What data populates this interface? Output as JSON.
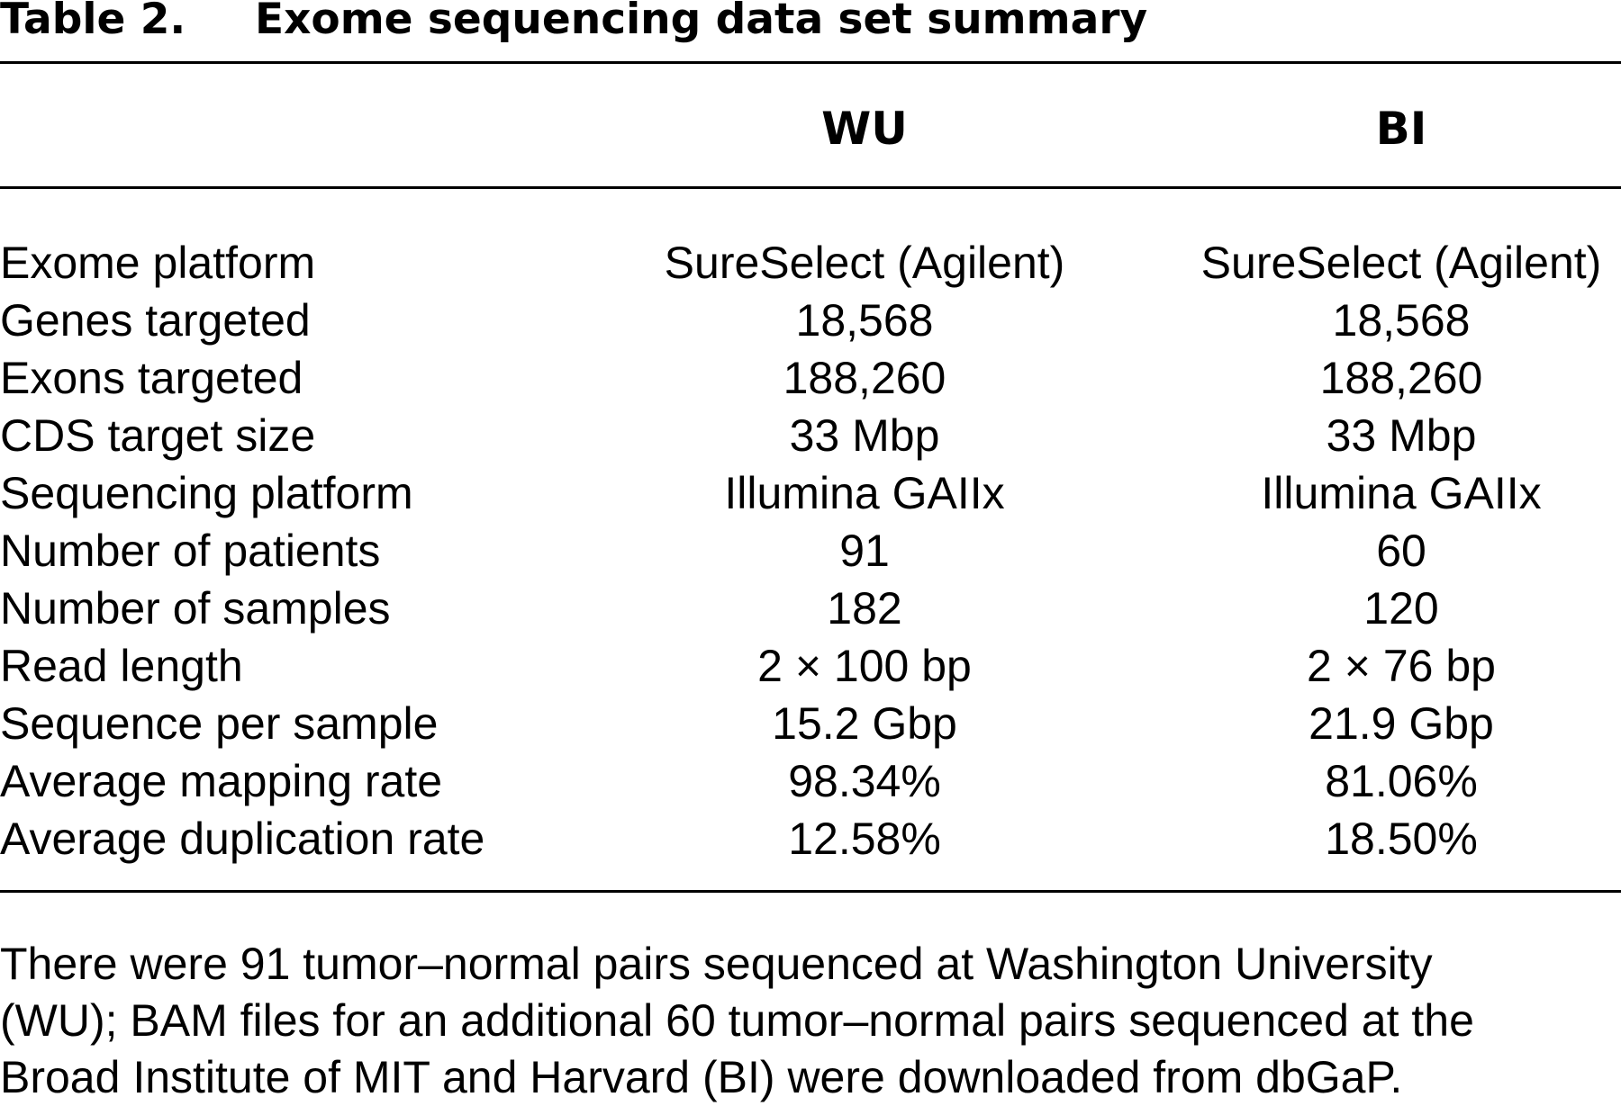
{
  "table": {
    "label": "Table 2.",
    "title": "Exome sequencing data set summary",
    "columns": [
      "WU",
      "BI"
    ],
    "rows": [
      {
        "label": "Exome platform",
        "wu": "SureSelect (Agilent)",
        "bi": "SureSelect (Agilent)"
      },
      {
        "label": "Genes targeted",
        "wu": "18,568",
        "bi": "18,568"
      },
      {
        "label": "Exons targeted",
        "wu": "188,260",
        "bi": "188,260"
      },
      {
        "label": "CDS target size",
        "wu": "33 Mbp",
        "bi": "33 Mbp"
      },
      {
        "label": "Sequencing platform",
        "wu": "Illumina GAIIx",
        "bi": "Illumina GAIIx"
      },
      {
        "label": "Number of patients",
        "wu": "91",
        "bi": "60"
      },
      {
        "label": "Number of samples",
        "wu": "182",
        "bi": "120"
      },
      {
        "label": "Read length",
        "wu": "2 × 100 bp",
        "bi": "2 × 76 bp"
      },
      {
        "label": "Sequence per sample",
        "wu": "15.2 Gbp",
        "bi": "21.9 Gbp"
      },
      {
        "label": "Average mapping rate",
        "wu": "98.34%",
        "bi": "81.06%"
      },
      {
        "label": "Average duplication rate",
        "wu": "12.58%",
        "bi": "18.50%"
      }
    ],
    "footnote_lines": [
      "There were 91 tumor–normal pairs sequenced at Washington University",
      "(WU); BAM files for an additional 60 tumor–normal pairs sequenced at the",
      "Broad Institute of MIT and Harvard (BI) were downloaded from dbGaP."
    ]
  }
}
